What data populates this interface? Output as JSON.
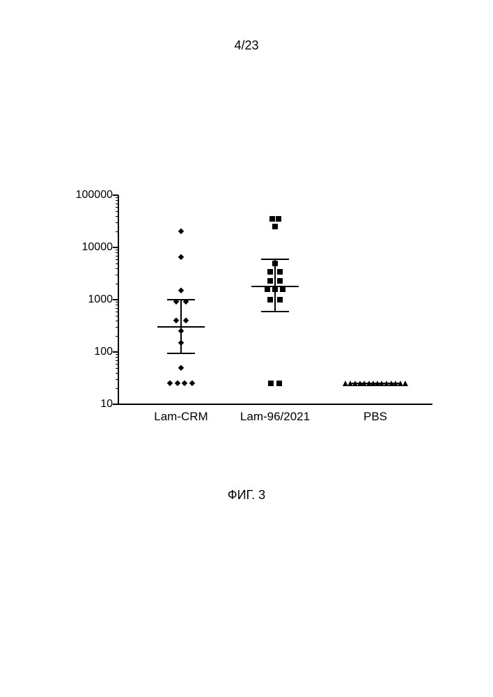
{
  "page_header": "4/23",
  "figure_caption": "ФИГ. 3",
  "chart": {
    "type": "scatter",
    "yscale": "log",
    "ylim": [
      10,
      100000
    ],
    "ytick_values": [
      10,
      100,
      1000,
      10000,
      100000
    ],
    "ytick_labels": [
      "10",
      "100",
      "1000",
      "10000",
      "100000"
    ],
    "ytick_label_fontsize": 16,
    "xtick_label_fontsize": 17,
    "axis_color": "#000000",
    "axis_width": 2,
    "tick_len_major": 8,
    "tick_len_minor": 4,
    "background_color": "#ffffff",
    "categories": [
      "Lam-CRM",
      "Lam-96/2021",
      "PBS"
    ],
    "category_x_centers": [
      0.2,
      0.5,
      0.82
    ],
    "marker_size": 8,
    "series": [
      {
        "name": "Lam-CRM",
        "marker": "diamond",
        "color": "#000000",
        "geomean": 300,
        "err_low": 95,
        "err_high": 1000,
        "whisker_halfwidth_frac": 0.045,
        "mean_halfwidth_frac": 0.075,
        "points": [
          {
            "y": 20000,
            "dx": 0
          },
          {
            "y": 6500,
            "dx": 0
          },
          {
            "y": 1500,
            "dx": 0
          },
          {
            "y": 900,
            "dx": -0.016
          },
          {
            "y": 900,
            "dx": 0.016
          },
          {
            "y": 400,
            "dx": -0.016
          },
          {
            "y": 400,
            "dx": 0.016
          },
          {
            "y": 250,
            "dx": 0
          },
          {
            "y": 150,
            "dx": 0
          },
          {
            "y": 50,
            "dx": 0
          },
          {
            "y": 25,
            "dx": -0.036
          },
          {
            "y": 25,
            "dx": -0.012
          },
          {
            "y": 25,
            "dx": 0.012
          },
          {
            "y": 25,
            "dx": 0.036
          }
        ]
      },
      {
        "name": "Lam-96/2021",
        "marker": "square",
        "color": "#000000",
        "geomean": 1800,
        "err_low": 600,
        "err_high": 6000,
        "whisker_halfwidth_frac": 0.045,
        "mean_halfwidth_frac": 0.075,
        "points": [
          {
            "y": 35000,
            "dx": -0.01
          },
          {
            "y": 35000,
            "dx": 0.01
          },
          {
            "y": 25000,
            "dx": 0
          },
          {
            "y": 5000,
            "dx": 0
          },
          {
            "y": 3400,
            "dx": -0.016
          },
          {
            "y": 3400,
            "dx": 0.016
          },
          {
            "y": 2300,
            "dx": -0.016
          },
          {
            "y": 2300,
            "dx": 0.016
          },
          {
            "y": 1600,
            "dx": -0.024
          },
          {
            "y": 1600,
            "dx": 0
          },
          {
            "y": 1600,
            "dx": 0.024
          },
          {
            "y": 1000,
            "dx": -0.016
          },
          {
            "y": 1000,
            "dx": 0.016
          },
          {
            "y": 25,
            "dx": -0.014
          },
          {
            "y": 25,
            "dx": 0.014
          }
        ]
      },
      {
        "name": "PBS",
        "marker": "triangle",
        "color": "#000000",
        "geomean": 25,
        "err_low": 25,
        "err_high": 25,
        "whisker_halfwidth_frac": 0.045,
        "mean_halfwidth_frac": 0.075,
        "points": [
          {
            "y": 25,
            "dx": -0.095
          },
          {
            "y": 25,
            "dx": -0.08
          },
          {
            "y": 25,
            "dx": -0.065
          },
          {
            "y": 25,
            "dx": -0.05
          },
          {
            "y": 25,
            "dx": -0.035
          },
          {
            "y": 25,
            "dx": -0.02
          },
          {
            "y": 25,
            "dx": -0.006
          },
          {
            "y": 25,
            "dx": 0.006
          },
          {
            "y": 25,
            "dx": 0.02
          },
          {
            "y": 25,
            "dx": 0.035
          },
          {
            "y": 25,
            "dx": 0.05
          },
          {
            "y": 25,
            "dx": 0.065
          },
          {
            "y": 25,
            "dx": 0.08
          },
          {
            "y": 25,
            "dx": 0.095
          }
        ]
      }
    ]
  }
}
